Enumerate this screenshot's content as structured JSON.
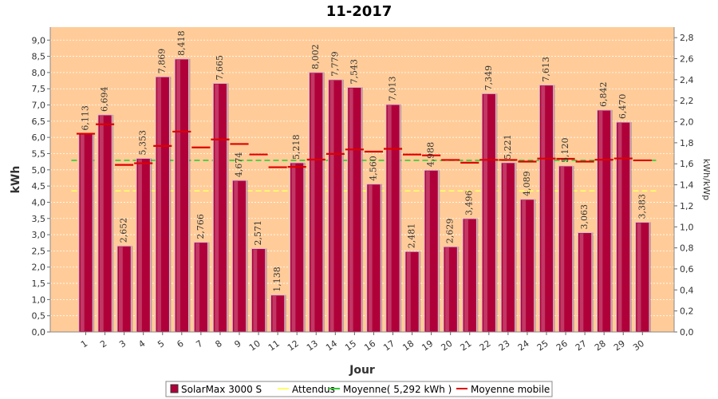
{
  "chart_data": {
    "type": "bar",
    "title": "11-2017",
    "xlabel": "Jour",
    "ylabel": "kWh",
    "ylabel_right": "kWh/kWp",
    "ylim": [
      0,
      9.4
    ],
    "ylim_right": [
      0,
      2.9
    ],
    "y_ticks": [
      "0,0",
      "0,5",
      "1,0",
      "1,5",
      "2,0",
      "2,5",
      "3,0",
      "3,5",
      "4,0",
      "4,5",
      "5,0",
      "5,5",
      "6,0",
      "6,5",
      "7,0",
      "7,5",
      "8,0",
      "8,5",
      "9,0"
    ],
    "y_right_ticks": [
      "0,0",
      "0,2",
      "0,4",
      "0,6",
      "0,8",
      "1,0",
      "1,2",
      "1,4",
      "1,6",
      "1,8",
      "2,0",
      "2,2",
      "2,4",
      "2,6",
      "2,8"
    ],
    "categories": [
      "1",
      "2",
      "3",
      "4",
      "5",
      "6",
      "7",
      "8",
      "9",
      "10",
      "11",
      "12",
      "13",
      "14",
      "15",
      "16",
      "17",
      "18",
      "19",
      "20",
      "21",
      "22",
      "23",
      "24",
      "25",
      "26",
      "27",
      "28",
      "29",
      "30"
    ],
    "series": [
      {
        "name": "SolarMax 3000 S",
        "type": "bar",
        "color": "#b0003a",
        "values": [
          6.113,
          6.694,
          2.652,
          5.353,
          7.869,
          8.418,
          2.766,
          7.665,
          4.674,
          2.571,
          1.138,
          5.218,
          8.002,
          7.779,
          7.543,
          4.56,
          7.013,
          2.481,
          4.988,
          2.629,
          3.496,
          7.349,
          5.221,
          4.089,
          7.613,
          5.12,
          3.063,
          6.842,
          6.47,
          3.383
        ],
        "labels": [
          "6,113",
          "6,694",
          "2,652",
          "5,353",
          "7,869",
          "8,418",
          "2,766",
          "7,665",
          "4,674",
          "2,571",
          "1,138",
          "5,218",
          "8,002",
          "7,779",
          "7,543",
          "4,560",
          "7,013",
          "2,481",
          "4,988",
          "2,629",
          "3,496",
          "7,349",
          "5,221",
          "4,089",
          "7,613",
          "5,120",
          "3,063",
          "6,842",
          "6,470",
          "3,383"
        ]
      },
      {
        "name": "Attendus",
        "type": "hline",
        "color": "#ffff66",
        "value": 4.35
      },
      {
        "name": "Moyenne( 5,292 kWh )",
        "type": "hline",
        "color": "#33cc33",
        "value": 5.292
      },
      {
        "name": "Moyenne mobile",
        "type": "steps",
        "color": "#dd0000",
        "values": [
          6.113,
          6.404,
          5.153,
          5.203,
          5.736,
          6.178,
          5.69,
          5.937,
          5.796,
          5.474,
          5.08,
          5.091,
          5.315,
          5.491,
          5.628,
          5.561,
          5.648,
          5.472,
          5.446,
          5.305,
          5.219,
          5.307,
          5.304,
          5.253,
          5.347,
          5.339,
          5.254,
          5.313,
          5.351,
          5.292
        ]
      }
    ],
    "legend_position": "bottom",
    "grid": true,
    "plot_background": "#ffcc99"
  }
}
